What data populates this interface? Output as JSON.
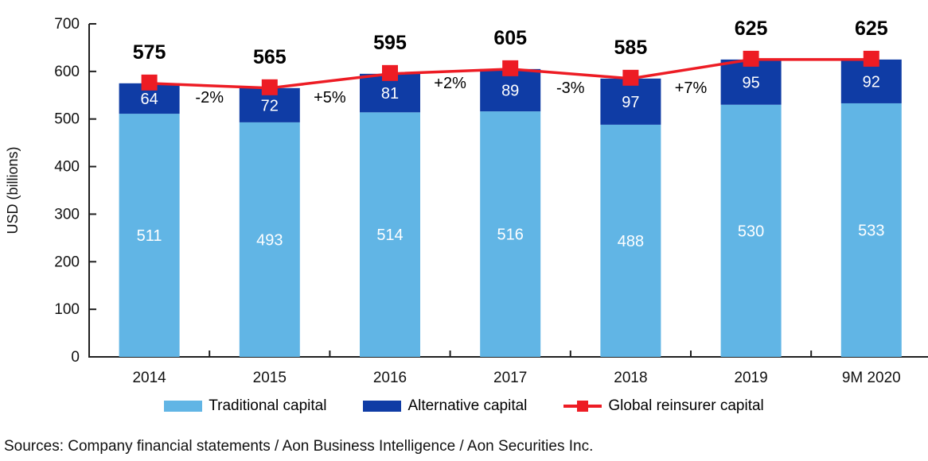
{
  "chart_data": {
    "type": "bar",
    "subtype": "stacked-bars-with-total-line",
    "title": "",
    "categories": [
      "2014",
      "2015",
      "2016",
      "2017",
      "2018",
      "2019",
      "9M 2020"
    ],
    "series": [
      {
        "name": "Traditional capital",
        "color": "#61B5E5",
        "values": [
          511,
          493,
          514,
          516,
          488,
          530,
          533
        ]
      },
      {
        "name": "Alternative capital",
        "color": "#0F3CA5",
        "values": [
          64,
          72,
          81,
          89,
          97,
          95,
          92
        ]
      }
    ],
    "line_series": {
      "name": "Global reinsurer capital",
      "color": "#ED1C24",
      "marker": "square",
      "values": [
        575,
        565,
        595,
        605,
        585,
        625,
        625
      ]
    },
    "total_labels": [
      "575",
      "565",
      "595",
      "605",
      "585",
      "625",
      "625"
    ],
    "pct_change_labels": [
      "-2%",
      "+5%",
      "+2%",
      "-3%",
      "+7%"
    ],
    "ylabel": "USD (billions)",
    "ylim": [
      0,
      700
    ],
    "ytick_step": 100,
    "yticks": [
      "0",
      "100",
      "200",
      "300",
      "400",
      "500",
      "600",
      "700"
    ],
    "grid": false,
    "legend_position": "bottom",
    "axis_color": "#1f1f1f",
    "bar_label_color": "#ffffff",
    "text_color": "#000000"
  },
  "sources": "Sources: Company financial statements / Aon Business Intelligence / Aon Securities Inc."
}
